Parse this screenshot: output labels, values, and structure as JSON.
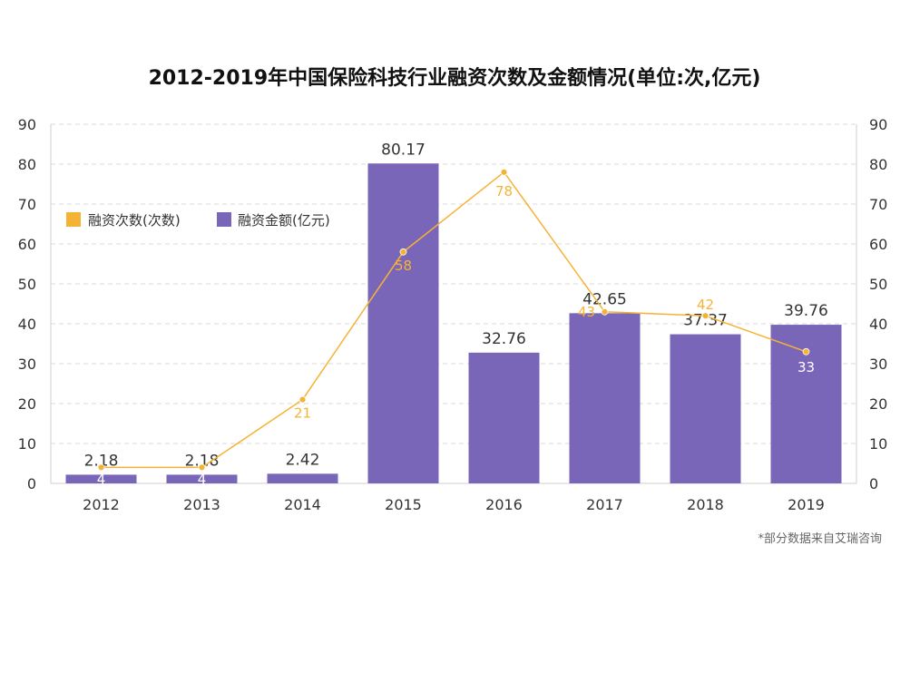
{
  "chart_data": {
    "type": "bar",
    "title": "2012-2019年中国保险科技行业融资次数及金额情况(单位:次,亿元)",
    "categories": [
      "2012",
      "2013",
      "2014",
      "2015",
      "2016",
      "2017",
      "2018",
      "2019"
    ],
    "ylim": [
      0,
      90
    ],
    "y_ticks": [
      0,
      10,
      20,
      30,
      40,
      50,
      60,
      70,
      80,
      90
    ],
    "y2lim": [
      0,
      90
    ],
    "y2_ticks": [
      0,
      10,
      20,
      30,
      40,
      50,
      60,
      70,
      80,
      90
    ],
    "grid": true,
    "legend_position": "top-left",
    "series": [
      {
        "name": "融资次数(次数)",
        "type": "line",
        "color": "#F5B335",
        "axis": "right",
        "values": [
          4,
          4,
          21,
          58,
          78,
          43,
          42,
          33
        ],
        "labels": [
          "4",
          "4",
          "21",
          "58",
          "78",
          "43",
          "42",
          "33"
        ]
      },
      {
        "name": "融资金额(亿元)",
        "type": "bar",
        "color": "#7A66B8",
        "axis": "left",
        "values": [
          2.18,
          2.18,
          2.42,
          80.17,
          32.76,
          42.65,
          37.37,
          39.76
        ],
        "labels": [
          "2.18",
          "2.18",
          "2.42",
          "80.17",
          "32.76",
          "42.65",
          "37.37",
          "39.76"
        ]
      }
    ],
    "footnote": "*部分数据来自艾瑞咨询"
  }
}
